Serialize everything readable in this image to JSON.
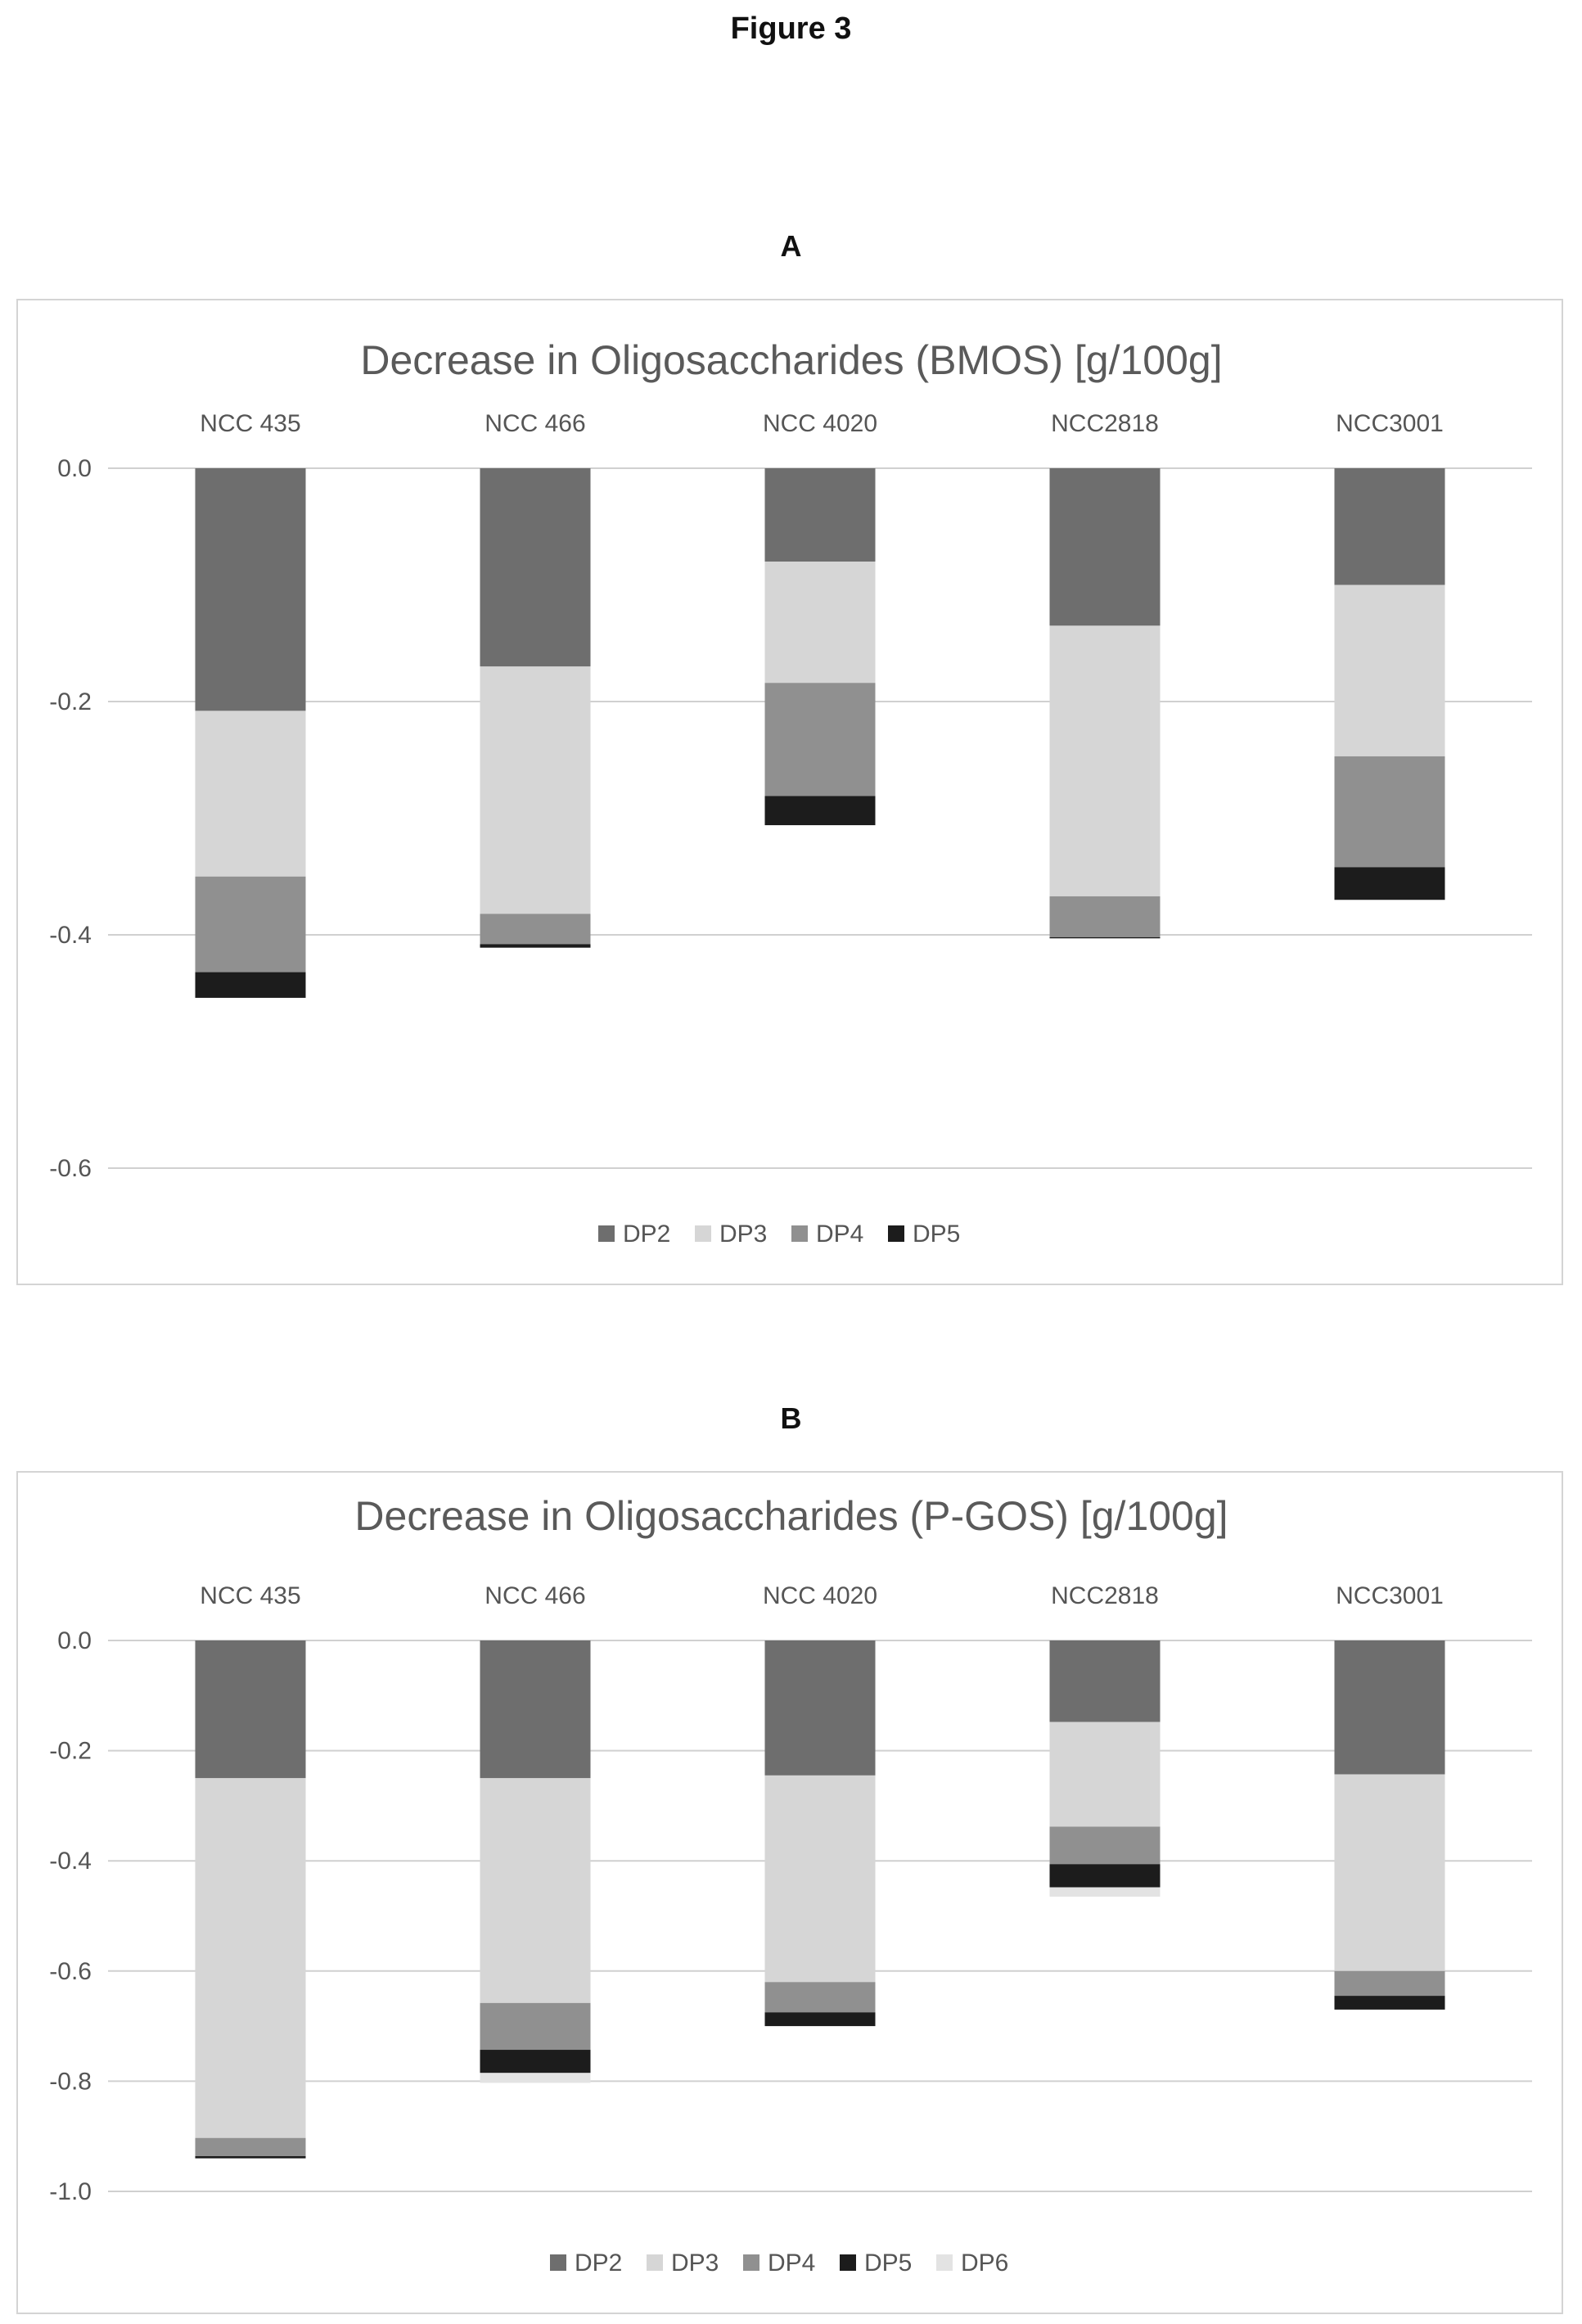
{
  "figure_title": "Figure 3",
  "panels": [
    {
      "letter": "A"
    },
    {
      "letter": "B"
    }
  ],
  "chart_data": [
    {
      "type": "bar",
      "stacked": true,
      "title": "Decrease in Oligosaccharides (BMOS) [g/100g]",
      "categories": [
        "NCC 435",
        "NCC 466",
        "NCC 4020",
        "NCC2818",
        "NCC3001"
      ],
      "category_axis_position": "top",
      "xlabel": "",
      "ylabel": "",
      "ylim": [
        -0.6,
        0.0
      ],
      "yticks": [
        0.0,
        -0.2,
        -0.4,
        -0.6
      ],
      "ytick_labels": [
        "0.0",
        "-0.2",
        "-0.4",
        "-0.6"
      ],
      "grid": true,
      "legend_position": "bottom",
      "series": [
        {
          "name": "DP2",
          "color": "#6e6e6e",
          "values": [
            -0.208,
            -0.17,
            -0.08,
            -0.135,
            -0.1
          ]
        },
        {
          "name": "DP3",
          "color": "#d6d6d6",
          "values": [
            -0.142,
            -0.212,
            -0.104,
            -0.232,
            -0.147
          ]
        },
        {
          "name": "DP4",
          "color": "#909090",
          "values": [
            -0.082,
            -0.026,
            -0.097,
            -0.035,
            -0.095
          ]
        },
        {
          "name": "DP5",
          "color": "#1c1c1c",
          "values": [
            -0.022,
            -0.003,
            -0.025,
            -0.001,
            -0.028
          ]
        }
      ]
    },
    {
      "type": "bar",
      "stacked": true,
      "title": "Decrease in Oligosaccharides (P-GOS) [g/100g]",
      "categories": [
        "NCC 435",
        "NCC 466",
        "NCC 4020",
        "NCC2818",
        "NCC3001"
      ],
      "category_axis_position": "top",
      "xlabel": "",
      "ylabel": "",
      "ylim": [
        -1.0,
        0.0
      ],
      "yticks": [
        0.0,
        -0.2,
        -0.4,
        -0.6,
        -0.8,
        -1.0
      ],
      "ytick_labels": [
        "0.0",
        "-0.2",
        "-0.4",
        "-0.6",
        "-0.8",
        "-1.0"
      ],
      "grid": true,
      "legend_position": "bottom",
      "series": [
        {
          "name": "DP2",
          "color": "#6e6e6e",
          "values": [
            -0.25,
            -0.25,
            -0.245,
            -0.148,
            -0.243
          ]
        },
        {
          "name": "DP3",
          "color": "#d6d6d6",
          "values": [
            -0.653,
            -0.408,
            -0.375,
            -0.19,
            -0.357
          ]
        },
        {
          "name": "DP4",
          "color": "#909090",
          "values": [
            -0.033,
            -0.085,
            -0.055,
            -0.068,
            -0.045
          ]
        },
        {
          "name": "DP5",
          "color": "#1c1c1c",
          "values": [
            -0.004,
            -0.042,
            -0.025,
            -0.042,
            -0.025
          ]
        },
        {
          "name": "DP6",
          "color": "#e3e3e3",
          "values": [
            0.0,
            -0.018,
            0.0,
            -0.017,
            0.0
          ]
        }
      ]
    }
  ]
}
